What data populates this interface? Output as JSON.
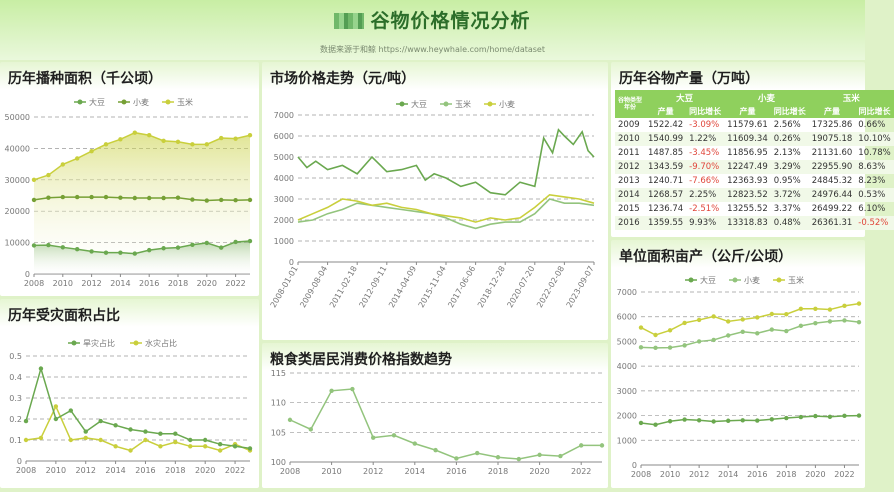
{
  "header": {
    "title": "谷物价格情况分析",
    "subtitle": "数据来源于和鲸 https://www.heywhale.com/home/dataset"
  },
  "colors": {
    "soybean": "#6aa84f",
    "wheat": "#93c47d",
    "corn": "#c9cf3c",
    "dark": "#76a035"
  },
  "panels": {
    "area": {
      "title": "历年播种面积（千公顷）"
    },
    "price": {
      "title": "市场价格走势（元/吨）"
    },
    "production": {
      "title": "历年谷物产量（万吨）"
    },
    "disaster": {
      "title": "历年受灾面积占比"
    },
    "cpi": {
      "title": "粮食类居民消费价格指数趋势"
    },
    "yield": {
      "title": "单位面积亩产（公斤/公顷）"
    }
  },
  "chart_data": [
    {
      "id": "area",
      "type": "area",
      "x": [
        2008,
        2009,
        2010,
        2011,
        2012,
        2013,
        2014,
        2015,
        2016,
        2017,
        2018,
        2019,
        2020,
        2021,
        2022,
        2023
      ],
      "xticks": [
        "2008",
        "2010",
        "2012",
        "2014",
        "2016",
        "2018",
        "2020",
        "2022"
      ],
      "ylim": [
        0,
        50000
      ],
      "yticks": [
        "0",
        "10000",
        "20000",
        "30000",
        "40000",
        "50000"
      ],
      "legend": [
        "大豆",
        "小麦",
        "玉米"
      ],
      "series": [
        {
          "name": "大豆",
          "values": [
            9100,
            9200,
            8500,
            7900,
            7200,
            6800,
            6800,
            6500,
            7600,
            8200,
            8400,
            9300,
            9900,
            8400,
            10200,
            10500
          ]
        },
        {
          "name": "小麦",
          "values": [
            23600,
            24300,
            24500,
            24500,
            24500,
            24500,
            24300,
            24200,
            24200,
            24200,
            24300,
            23700,
            23400,
            23600,
            23500,
            23600
          ]
        },
        {
          "name": "玉米",
          "values": [
            30000,
            31500,
            34900,
            36800,
            39100,
            41300,
            42900,
            45000,
            44200,
            42400,
            42100,
            41300,
            41300,
            43300,
            43100,
            44200
          ]
        }
      ]
    },
    {
      "id": "price",
      "type": "line",
      "xticks": [
        "2008-01-01",
        "2009-08-04",
        "2011-02-18",
        "2012-09-11",
        "2014-04-09",
        "2015-11-04",
        "2017-06-06",
        "2018-12-28",
        "2020-07-20",
        "2022-02-08",
        "2023-09-07"
      ],
      "ylim": [
        0,
        7000
      ],
      "yticks": [
        "0",
        "1000",
        "2000",
        "3000",
        "4000",
        "5000",
        "6000",
        "7000"
      ],
      "legend": [
        "大豆",
        "玉米",
        "小麦"
      ],
      "series": [
        {
          "name": "大豆",
          "x": [
            0,
            0.3,
            0.6,
            1,
            1.5,
            2,
            2.5,
            3,
            3.5,
            4,
            4.3,
            4.6,
            5,
            5.5,
            6,
            6.5,
            7,
            7.5,
            8,
            8.3,
            8.6,
            8.8,
            9,
            9.3,
            9.6,
            9.8,
            10
          ],
          "values": [
            5000,
            4500,
            4800,
            4400,
            4600,
            4200,
            5000,
            4300,
            4400,
            4600,
            3900,
            4200,
            4000,
            3600,
            3800,
            3300,
            3200,
            3800,
            3600,
            5900,
            5200,
            6300,
            6000,
            5600,
            6200,
            5300,
            5000
          ]
        },
        {
          "name": "玉米",
          "x": [
            0,
            0.5,
            1,
            1.5,
            2,
            2.5,
            3,
            3.5,
            4,
            4.5,
            5,
            5.5,
            6,
            6.5,
            7,
            7.5,
            8,
            8.5,
            9,
            9.5,
            10
          ],
          "values": [
            1900,
            2000,
            2300,
            2500,
            2800,
            2700,
            2600,
            2500,
            2400,
            2300,
            2100,
            1800,
            1600,
            1800,
            1900,
            1900,
            2300,
            3000,
            2800,
            2800,
            2700
          ]
        },
        {
          "name": "小麦",
          "x": [
            0,
            0.5,
            1,
            1.5,
            2,
            2.5,
            3,
            3.5,
            4,
            4.5,
            5,
            5.5,
            6,
            6.5,
            7,
            7.5,
            8,
            8.5,
            9,
            9.5,
            10
          ],
          "values": [
            2000,
            2300,
            2600,
            3000,
            2900,
            2700,
            2800,
            2600,
            2500,
            2300,
            2200,
            2100,
            1900,
            2100,
            2000,
            2100,
            2600,
            3200,
            3100,
            3000,
            2800
          ]
        }
      ]
    },
    {
      "id": "production",
      "type": "table",
      "corner": [
        "谷物类型",
        "年份"
      ],
      "groups": [
        "大豆",
        "小麦",
        "玉米"
      ],
      "subheaders": [
        "产量",
        "同比增长",
        "产量",
        "同比增长",
        "产量",
        "同比增长"
      ],
      "rows": [
        [
          "2009",
          "1522.42",
          "-3.09%",
          "11579.61",
          "2.56%",
          "17325.86",
          "0.66%"
        ],
        [
          "2010",
          "1540.99",
          "1.22%",
          "11609.34",
          "0.26%",
          "19075.18",
          "10.10%"
        ],
        [
          "2011",
          "1487.85",
          "-3.45%",
          "11856.95",
          "2.13%",
          "21131.60",
          "10.78%"
        ],
        [
          "2012",
          "1343.59",
          "-9.70%",
          "12247.49",
          "3.29%",
          "22955.90",
          "8.63%"
        ],
        [
          "2013",
          "1240.71",
          "-7.66%",
          "12363.93",
          "0.95%",
          "24845.32",
          "8.23%"
        ],
        [
          "2014",
          "1268.57",
          "2.25%",
          "12823.52",
          "3.72%",
          "24976.44",
          "0.53%"
        ],
        [
          "2015",
          "1236.74",
          "-2.51%",
          "13255.52",
          "3.37%",
          "26499.22",
          "6.10%"
        ],
        [
          "2016",
          "1359.55",
          "9.93%",
          "13318.83",
          "0.48%",
          "26361.31",
          "-0.52%"
        ]
      ]
    },
    {
      "id": "disaster",
      "type": "line",
      "x": [
        2008,
        2009,
        2010,
        2011,
        2012,
        2013,
        2014,
        2015,
        2016,
        2017,
        2018,
        2019,
        2020,
        2021,
        2022,
        2023
      ],
      "xticks": [
        "2008",
        "2010",
        "2012",
        "2014",
        "2016",
        "2018",
        "2020",
        "2022"
      ],
      "ylim": [
        0,
        0.5
      ],
      "yticks": [
        "0",
        "0.1",
        "0.2",
        "0.3",
        "0.4",
        "0.5"
      ],
      "legend": [
        "旱灾占比",
        "水灾占比"
      ],
      "series": [
        {
          "name": "旱灾占比",
          "values": [
            0.19,
            0.44,
            0.2,
            0.24,
            0.14,
            0.19,
            0.17,
            0.15,
            0.14,
            0.13,
            0.13,
            0.1,
            0.1,
            0.08,
            0.07,
            0.06
          ]
        },
        {
          "name": "水灾占比",
          "values": [
            0.1,
            0.11,
            0.26,
            0.1,
            0.11,
            0.1,
            0.07,
            0.05,
            0.1,
            0.07,
            0.09,
            0.07,
            0.07,
            0.05,
            0.08,
            0.05
          ]
        }
      ]
    },
    {
      "id": "cpi",
      "type": "line",
      "x": [
        2008,
        2009,
        2010,
        2011,
        2012,
        2013,
        2014,
        2015,
        2016,
        2017,
        2018,
        2019,
        2020,
        2021,
        2022,
        2023
      ],
      "xticks": [
        "2008",
        "2010",
        "2012",
        "2014",
        "2016",
        "2018",
        "2020",
        "2022"
      ],
      "ylim": [
        100,
        115
      ],
      "yticks": [
        "100",
        "105",
        "110",
        "115"
      ],
      "series": [
        {
          "name": "粮食类居民消费价格指数",
          "values": [
            107.1,
            105.5,
            112.0,
            112.3,
            104.1,
            104.5,
            103.1,
            102.0,
            100.6,
            101.5,
            100.8,
            100.5,
            101.2,
            101.0,
            102.8,
            102.8
          ]
        }
      ]
    },
    {
      "id": "yield",
      "type": "line",
      "x": [
        2008,
        2009,
        2010,
        2011,
        2012,
        2013,
        2014,
        2015,
        2016,
        2017,
        2018,
        2019,
        2020,
        2021,
        2022,
        2023
      ],
      "xticks": [
        "2008",
        "2010",
        "2012",
        "2014",
        "2016",
        "2018",
        "2020",
        "2022"
      ],
      "ylim": [
        0,
        7000
      ],
      "yticks": [
        "0",
        "1000",
        "2000",
        "3000",
        "4000",
        "5000",
        "6000",
        "7000"
      ],
      "legend": [
        "大豆",
        "小麦",
        "玉米"
      ],
      "series": [
        {
          "name": "大豆",
          "values": [
            1700,
            1630,
            1770,
            1840,
            1810,
            1760,
            1790,
            1810,
            1800,
            1850,
            1900,
            1940,
            1980,
            1950,
            1990,
            2000
          ]
        },
        {
          "name": "小麦",
          "values": [
            4760,
            4740,
            4750,
            4840,
            5000,
            5060,
            5240,
            5390,
            5330,
            5480,
            5420,
            5630,
            5740,
            5810,
            5850,
            5780
          ]
        },
        {
          "name": "玉米",
          "values": [
            5560,
            5260,
            5450,
            5750,
            5870,
            6010,
            5810,
            5890,
            5970,
            6110,
            6100,
            6320,
            6320,
            6290,
            6440,
            6530
          ]
        }
      ]
    }
  ]
}
